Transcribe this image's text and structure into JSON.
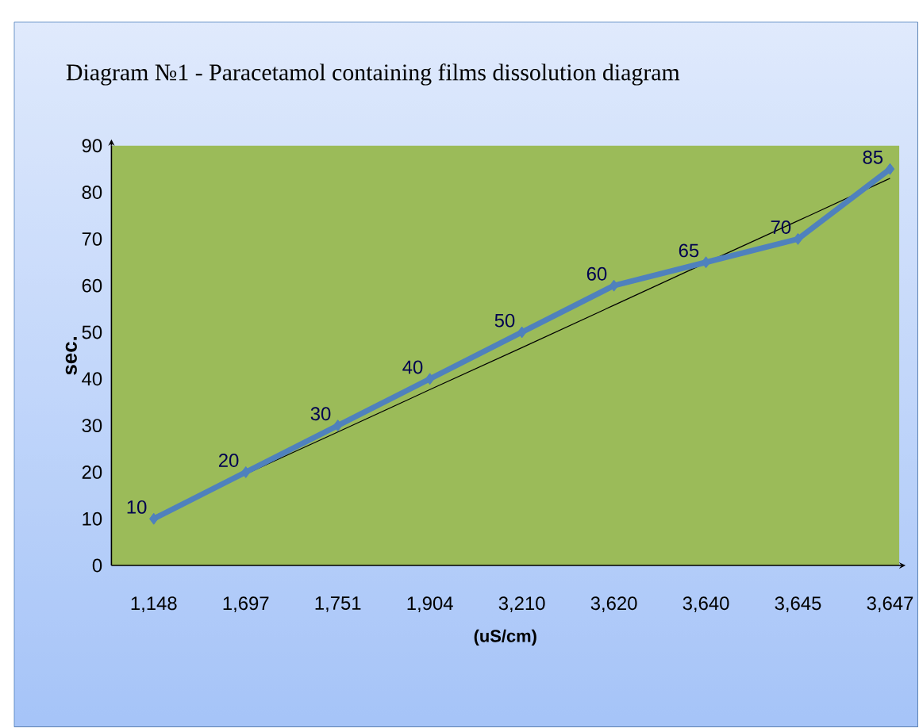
{
  "chart_data": {
    "type": "line",
    "title": "Diagram №1 - Paracetamol containing films dissolution diagram",
    "xlabel": "(uS/cm)",
    "ylabel": "sec.",
    "categories": [
      "1,148",
      "1,697",
      "1,751",
      "1,904",
      "3,210",
      "3,620",
      "3,640",
      "3,645",
      "3,647"
    ],
    "series": [
      {
        "color": "#4f81bd",
        "values": [
          10,
          20,
          30,
          40,
          50,
          60,
          65,
          70,
          85
        ],
        "marker": "diamond",
        "data_labels": true
      },
      {
        "type": "line",
        "color": "#000000",
        "values": [
          10.5,
          19.6,
          28.6,
          37.7,
          46.7,
          55.8,
          64.9,
          73.9,
          83
        ],
        "marker": "none"
      }
    ],
    "ylim": [
      0,
      90
    ],
    "yticks": [
      0,
      10,
      20,
      30,
      40,
      50,
      60,
      70,
      80,
      90
    ],
    "grid": false
  }
}
